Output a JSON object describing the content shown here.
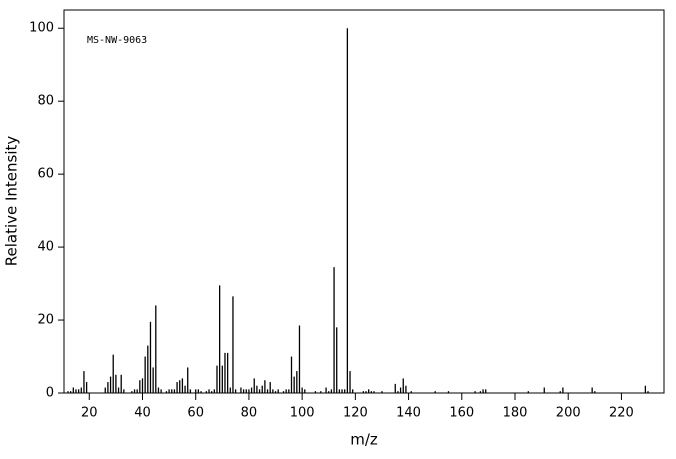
{
  "chart_data": {
    "type": "stick",
    "annotation": "MS-NW-9063",
    "xlabel": "m/z",
    "ylabel": "Relative Intensity",
    "color": "#000000",
    "x": [
      12,
      13,
      14,
      15,
      16,
      17,
      18,
      19,
      26,
      27,
      28,
      29,
      30,
      31,
      32,
      33,
      36,
      37,
      38,
      39,
      40,
      41,
      42,
      43,
      44,
      45,
      46,
      47,
      49,
      50,
      51,
      52,
      53,
      54,
      55,
      56,
      57,
      58,
      60,
      61,
      62,
      64,
      65,
      66,
      67,
      68,
      69,
      70,
      71,
      72,
      73,
      74,
      75,
      77,
      78,
      79,
      80,
      81,
      82,
      83,
      84,
      85,
      86,
      87,
      88,
      89,
      90,
      91,
      93,
      94,
      95,
      96,
      97,
      98,
      99,
      100,
      101,
      105,
      107,
      109,
      110,
      111,
      112,
      113,
      114,
      115,
      116,
      117,
      118,
      119,
      123,
      124,
      125,
      126,
      127,
      130,
      135,
      136,
      137,
      138,
      139,
      141,
      150,
      155,
      165,
      167,
      168,
      169,
      185,
      191,
      197,
      198,
      209,
      210,
      229,
      230
    ],
    "values": [
      0.5,
      0.5,
      1.5,
      1,
      1,
      1.5,
      6,
      3,
      1.5,
      3,
      4.5,
      10.5,
      5,
      1.5,
      5,
      1,
      0.5,
      1,
      1,
      3.5,
      4,
      10,
      13,
      19.5,
      7,
      24,
      1.5,
      1,
      0.5,
      1,
      1,
      1,
      3,
      3.5,
      4,
      2,
      7,
      1,
      1,
      1,
      0.5,
      0.5,
      1,
      0.5,
      1,
      7.5,
      29.5,
      7.5,
      11,
      11,
      1.5,
      26.5,
      1,
      1.5,
      1,
      1,
      1,
      1.5,
      4,
      2,
      1,
      2,
      3.5,
      1,
      3,
      1,
      0.5,
      1,
      0.5,
      1,
      1,
      10,
      4.5,
      6,
      18.5,
      1.5,
      1,
      0.5,
      0.5,
      1.5,
      0.5,
      1,
      34.5,
      18,
      1,
      1,
      1,
      100,
      6,
      1,
      0.5,
      0.5,
      1,
      0.5,
      0.5,
      0.5,
      2.5,
      0.5,
      1.5,
      4,
      2,
      0.5,
      0.5,
      0.5,
      0.5,
      0.5,
      1,
      1,
      0.5,
      1.5,
      0.5,
      1.5,
      1.5,
      0.5,
      2,
      0.5
    ],
    "xlim": [
      10.5,
      236
    ],
    "ylim": [
      0,
      105
    ],
    "xticks": [
      20,
      40,
      60,
      80,
      100,
      120,
      140,
      160,
      180,
      200,
      220
    ],
    "yticks": [
      0,
      20,
      40,
      60,
      80,
      100
    ]
  }
}
